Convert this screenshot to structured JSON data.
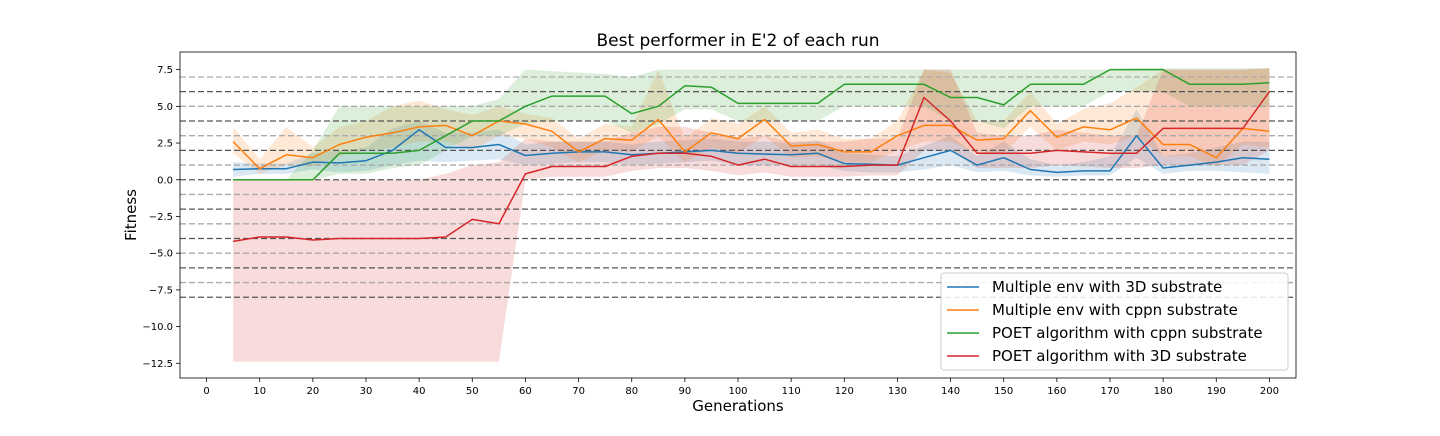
{
  "chart_data": {
    "type": "line",
    "title": "Best performer in E'2 of each run",
    "xlabel": "Generations",
    "ylabel": "Fitness",
    "xlim": [
      -5,
      205
    ],
    "ylim": [
      -13.5,
      8.7
    ],
    "xticks": [
      0,
      10,
      20,
      30,
      40,
      50,
      60,
      70,
      80,
      90,
      100,
      110,
      120,
      130,
      140,
      150,
      160,
      170,
      180,
      190,
      200
    ],
    "yticks": [
      -12.5,
      -10.0,
      -7.5,
      -5.0,
      -2.5,
      0.0,
      2.5,
      5.0,
      7.5
    ],
    "ytick_labels": [
      "−12.5",
      "−10.0",
      "−7.5",
      "−5.0",
      "−2.5",
      "0.0",
      "2.5",
      "5.0",
      "7.5"
    ],
    "hlines": {
      "dark": [
        6,
        4,
        2,
        0,
        -2,
        -4,
        -6,
        -8
      ],
      "light": [
        7,
        5,
        3,
        1,
        -1,
        -3,
        -5,
        -7
      ],
      "dark_color": "#555555",
      "light_color": "#aaaaaa"
    },
    "legend_position": "lower-right",
    "x": [
      5,
      10,
      15,
      20,
      25,
      30,
      35,
      40,
      45,
      50,
      55,
      60,
      65,
      70,
      75,
      80,
      85,
      90,
      95,
      100,
      105,
      110,
      115,
      120,
      125,
      130,
      135,
      140,
      145,
      150,
      155,
      160,
      165,
      170,
      175,
      180,
      185,
      190,
      195,
      200
    ],
    "series": [
      {
        "name": "Multiple env  with 3D substrate",
        "color": "#1f77b4",
        "values": [
          0.7,
          0.75,
          0.75,
          1.2,
          1.15,
          1.3,
          2.0,
          3.4,
          2.2,
          2.2,
          2.4,
          1.65,
          1.8,
          1.9,
          1.9,
          1.7,
          1.8,
          1.9,
          2.0,
          1.8,
          1.75,
          1.7,
          1.8,
          1.1,
          1.05,
          1.0,
          1.5,
          2.0,
          1.0,
          1.5,
          0.7,
          0.5,
          0.6,
          0.6,
          3.0,
          0.8,
          1.0,
          1.2,
          1.5,
          1.4
        ],
        "lower": [
          0.2,
          0.4,
          0.4,
          0.7,
          0.5,
          0.6,
          1.0,
          1.3,
          1.2,
          1.3,
          1.4,
          1.0,
          1.1,
          1.2,
          1.2,
          1.0,
          1.1,
          1.2,
          1.3,
          1.0,
          1.0,
          1.0,
          1.0,
          0.6,
          0.5,
          0.5,
          0.7,
          1.0,
          0.5,
          0.6,
          0.3,
          0.2,
          0.3,
          0.3,
          1.5,
          0.4,
          0.6,
          0.6,
          0.5,
          0.4
        ],
        "upper": [
          1.2,
          1.1,
          1.1,
          1.8,
          2.0,
          2.2,
          3.5,
          4.0,
          3.2,
          3.2,
          3.4,
          2.4,
          2.6,
          2.6,
          2.6,
          2.4,
          2.6,
          2.7,
          2.8,
          2.6,
          2.6,
          2.5,
          2.7,
          1.8,
          1.7,
          1.6,
          2.3,
          3.0,
          1.6,
          2.6,
          1.4,
          1.0,
          1.2,
          1.6,
          4.8,
          1.6,
          1.8,
          2.2,
          2.6,
          2.6
        ]
      },
      {
        "name": "Multiple env  with cppn substrate",
        "color": "#ff7f0e",
        "values": [
          2.6,
          0.75,
          1.7,
          1.5,
          2.4,
          2.9,
          3.2,
          3.6,
          3.7,
          3.0,
          4.0,
          3.8,
          3.3,
          1.9,
          2.8,
          2.7,
          4.1,
          1.9,
          3.2,
          2.8,
          4.1,
          2.3,
          2.4,
          1.9,
          1.9,
          3.0,
          3.7,
          3.7,
          2.7,
          2.8,
          4.7,
          2.9,
          3.6,
          3.4,
          4.2,
          2.4,
          2.4,
          1.5,
          3.5,
          3.3
        ],
        "lower": [
          1.8,
          0.4,
          1.0,
          0.9,
          1.6,
          2.0,
          2.2,
          2.6,
          2.6,
          2.0,
          3.0,
          2.8,
          2.2,
          1.2,
          2.0,
          1.9,
          3.0,
          1.2,
          2.2,
          1.8,
          3.0,
          1.5,
          1.6,
          1.2,
          1.2,
          2.0,
          2.6,
          2.6,
          1.8,
          1.8,
          3.6,
          2.0,
          2.6,
          2.4,
          3.0,
          1.6,
          1.6,
          0.9,
          2.4,
          2.2
        ],
        "upper": [
          3.6,
          1.4,
          3.6,
          2.2,
          3.6,
          4.0,
          5.0,
          5.4,
          4.8,
          4.4,
          5.0,
          4.5,
          4.2,
          2.8,
          3.8,
          3.6,
          7.5,
          2.8,
          4.2,
          3.8,
          5.0,
          3.2,
          3.4,
          2.8,
          2.8,
          4.0,
          7.5,
          7.3,
          4.0,
          4.0,
          6.0,
          3.8,
          4.8,
          5.2,
          6.3,
          7.5,
          7.5,
          7.5,
          7.5,
          7.6
        ]
      },
      {
        "name": "POET algorithm with cppn substrate",
        "color": "#2ca02c",
        "values": [
          0.0,
          0.0,
          0.0,
          0.0,
          1.8,
          1.8,
          1.8,
          2.0,
          3.0,
          4.0,
          4.0,
          5.0,
          5.7,
          5.7,
          5.7,
          4.5,
          5.0,
          6.4,
          6.3,
          5.2,
          5.2,
          5.2,
          5.2,
          6.5,
          6.5,
          6.5,
          6.5,
          5.6,
          5.6,
          5.1,
          6.5,
          6.5,
          6.5,
          7.5,
          7.5,
          7.5,
          6.5,
          6.5,
          6.5,
          6.6
        ],
        "lower": [
          0.0,
          0.0,
          0.0,
          0.0,
          0.4,
          0.4,
          0.8,
          1.0,
          2.0,
          3.0,
          3.0,
          3.8,
          4.0,
          4.0,
          4.0,
          3.2,
          3.8,
          4.8,
          4.8,
          4.0,
          4.0,
          4.0,
          4.0,
          5.0,
          5.0,
          5.0,
          5.0,
          4.0,
          4.0,
          3.5,
          5.0,
          5.0,
          5.0,
          6.0,
          6.0,
          6.0,
          5.0,
          5.0,
          5.0,
          5.0
        ],
        "upper": [
          0.0,
          0.0,
          0.0,
          2.0,
          5.0,
          5.0,
          5.0,
          5.0,
          5.0,
          5.0,
          5.5,
          7.5,
          7.4,
          7.3,
          7.2,
          7.0,
          7.5,
          7.5,
          7.5,
          7.5,
          7.5,
          7.5,
          7.5,
          7.5,
          7.5,
          7.5,
          7.5,
          7.5,
          7.5,
          7.5,
          7.5,
          7.5,
          7.5,
          7.5,
          7.6,
          7.6,
          7.6,
          7.6,
          7.6,
          7.6
        ]
      },
      {
        "name": "POET algorithm with 3D substrate",
        "color": "#d62728",
        "values": [
          -4.2,
          -3.9,
          -3.9,
          -4.1,
          -4.0,
          -4.0,
          -4.0,
          -4.0,
          -3.9,
          -2.7,
          -3.0,
          0.4,
          0.9,
          0.9,
          0.9,
          1.6,
          1.8,
          1.8,
          1.6,
          1.0,
          1.4,
          0.9,
          0.9,
          0.9,
          1.0,
          1.0,
          5.6,
          4.0,
          1.8,
          1.8,
          1.8,
          2.0,
          1.9,
          1.8,
          1.8,
          3.5,
          3.5,
          3.5,
          3.5,
          6.0
        ],
        "lower": [
          -12.4,
          -12.4,
          -12.4,
          -12.4,
          -12.4,
          -12.4,
          -12.4,
          -12.4,
          -12.4,
          -12.4,
          -12.4,
          0.0,
          0.2,
          0.2,
          0.2,
          0.6,
          0.8,
          0.8,
          0.6,
          0.3,
          0.5,
          0.2,
          0.2,
          0.2,
          0.3,
          0.3,
          2.0,
          2.0,
          0.8,
          0.8,
          0.8,
          1.0,
          0.9,
          0.8,
          0.8,
          1.0,
          1.0,
          1.0,
          1.0,
          2.0
        ],
        "upper": [
          0.0,
          0.0,
          0.0,
          0.0,
          0.0,
          0.0,
          0.0,
          0.0,
          0.4,
          1.0,
          1.2,
          2.8,
          2.6,
          2.6,
          2.6,
          3.2,
          3.6,
          3.6,
          3.2,
          2.8,
          3.0,
          2.6,
          2.6,
          2.6,
          2.8,
          2.8,
          7.5,
          7.5,
          3.2,
          3.0,
          3.0,
          3.4,
          3.2,
          3.0,
          3.0,
          7.5,
          7.5,
          7.5,
          7.5,
          7.6
        ]
      }
    ]
  }
}
